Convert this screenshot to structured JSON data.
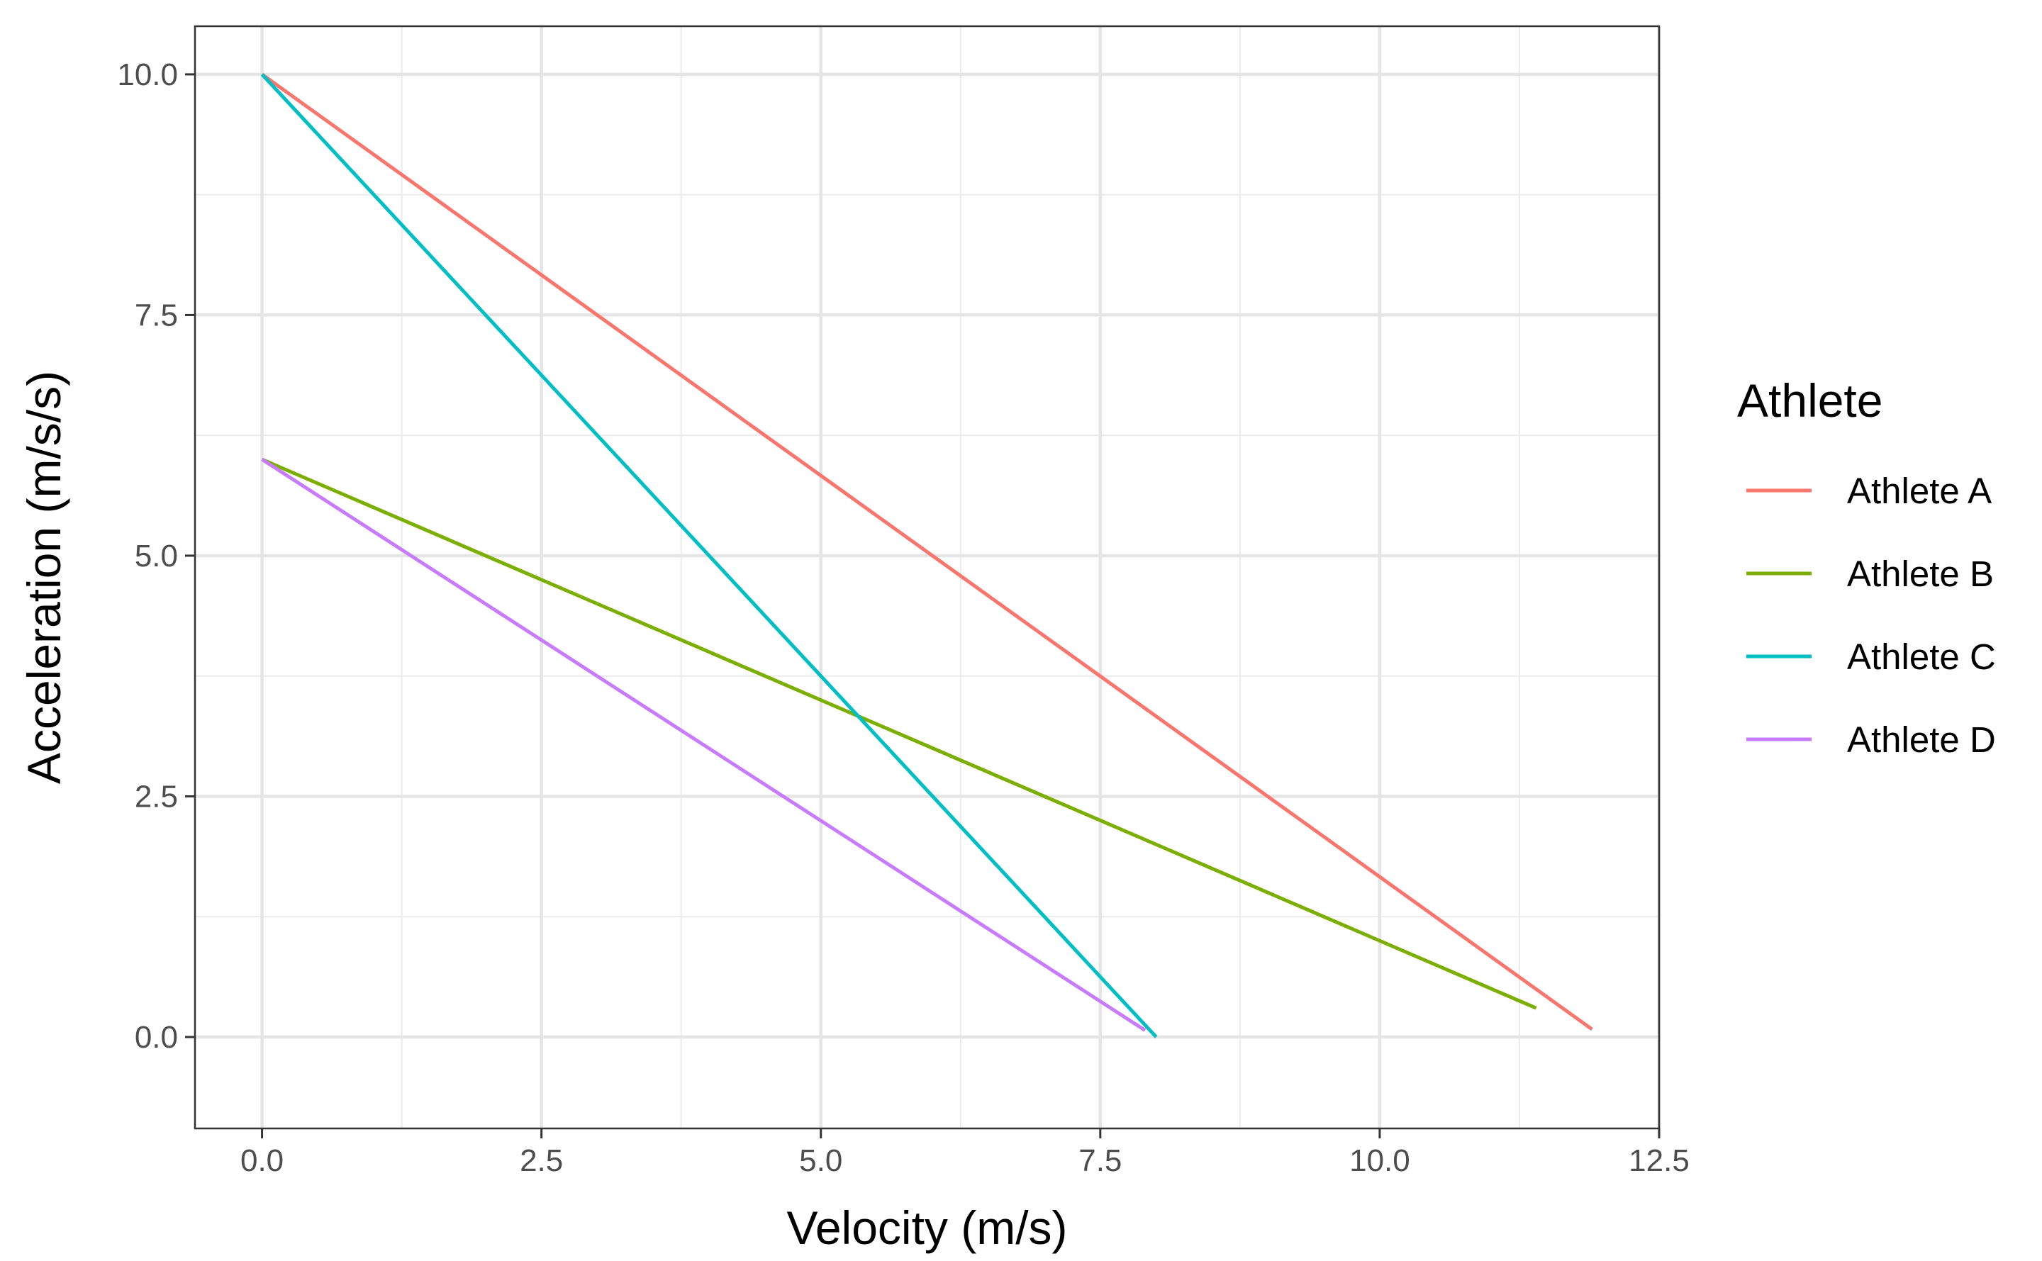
{
  "chart_data": {
    "type": "line",
    "title": "",
    "xlabel": "Velocity (m/s)",
    "ylabel": "Acceleration (m/s/s)",
    "xlim": [
      -0.6,
      12.5
    ],
    "ylim": [
      -0.95,
      10.5
    ],
    "x_ticks": [
      0.0,
      2.5,
      5.0,
      7.5,
      10.0,
      12.5
    ],
    "x_tick_labels": [
      "0.0",
      "2.5",
      "5.0",
      "7.5",
      "10.0",
      "12.5"
    ],
    "y_ticks": [
      0.0,
      2.5,
      5.0,
      7.5,
      10.0
    ],
    "y_tick_labels": [
      "0.0",
      "2.5",
      "5.0",
      "7.5",
      "10.0"
    ],
    "grid": true,
    "legend": {
      "title": "Athlete",
      "position": "right"
    },
    "series": [
      {
        "name": "Athlete A",
        "color": "#F8766D",
        "x": [
          0.0,
          11.9
        ],
        "y": [
          10.0,
          0.08
        ]
      },
      {
        "name": "Athlete B",
        "color": "#7CAE00",
        "x": [
          0.0,
          11.4
        ],
        "y": [
          6.0,
          0.3
        ]
      },
      {
        "name": "Athlete C",
        "color": "#00BFC4",
        "x": [
          0.0,
          8.0
        ],
        "y": [
          10.0,
          0.0
        ]
      },
      {
        "name": "Athlete D",
        "color": "#C77CFF",
        "x": [
          0.0,
          7.9
        ],
        "y": [
          6.0,
          0.07
        ]
      }
    ]
  }
}
